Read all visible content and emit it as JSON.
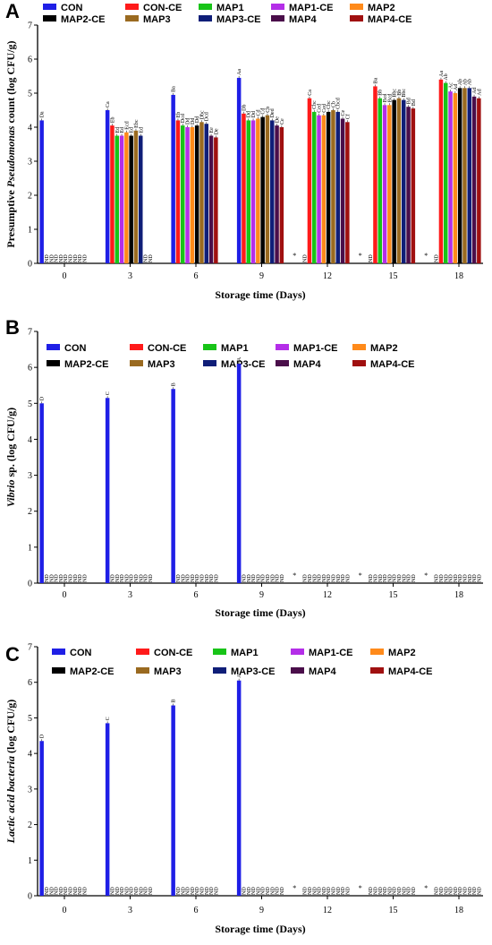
{
  "legend": [
    "CON",
    "CON-CE",
    "MAP1",
    "MAP1-CE",
    "MAP2",
    "MAP2-CE",
    "MAP3",
    "MAP3-CE",
    "MAP4",
    "MAP4-CE"
  ],
  "colors": [
    "#1f1fe6",
    "#ff1a1a",
    "#18c418",
    "#b42ee8",
    "#ff8a1a",
    "#000000",
    "#9a6a20",
    "#0f1e78",
    "#4a0e4a",
    "#a01010"
  ],
  "chart_data": [
    {
      "type": "bar",
      "panel": "A",
      "title": "",
      "xlabel": "Storage time (Days)",
      "ylabel_parts": [
        "Presumptive ",
        "Pseudomonas",
        " count (log CFU/g)"
      ],
      "ylim": [
        0,
        7
      ],
      "yticks": [
        "0",
        "1",
        "2",
        "3",
        "4",
        "5",
        "6",
        "7"
      ],
      "categories": [
        "0",
        "3",
        "6",
        "9",
        "12",
        "15",
        "18"
      ],
      "nd_label": "ND",
      "star_label": "*",
      "series": [
        {
          "name": "CON",
          "values": [
            4.2,
            4.5,
            4.95,
            5.45,
            null,
            null,
            null
          ],
          "labels": [
            "Da",
            "Ca",
            "Ba",
            "Aa",
            "",
            "",
            ""
          ]
        },
        {
          "name": "CON-CE",
          "values": [
            null,
            4.05,
            4.2,
            4.4,
            4.85,
            5.2,
            5.4
          ],
          "labels": [
            "",
            "Eb",
            "Eb",
            "Db",
            "Ca",
            "Ba",
            "Aa"
          ]
        },
        {
          "name": "MAP1",
          "values": [
            null,
            3.75,
            4.05,
            4.2,
            4.45,
            4.85,
            5.3
          ],
          "labels": [
            "",
            "Ed",
            "Dcd",
            "Dd",
            "Cbc",
            "Bb",
            "Ab"
          ]
        },
        {
          "name": "MAP1-CE",
          "values": [
            null,
            3.75,
            4.0,
            4.2,
            4.35,
            4.65,
            5.05
          ],
          "labels": [
            "",
            "Ed",
            "Dd",
            "Dd",
            "Ced",
            "Bcd",
            "Ac"
          ]
        },
        {
          "name": "MAP2",
          "values": [
            null,
            3.85,
            4.0,
            4.25,
            4.35,
            4.65,
            5.0
          ],
          "labels": [
            "",
            "Ecd",
            "Dd",
            "Cd",
            "Ced",
            "Bcd",
            "Ad"
          ]
        },
        {
          "name": "MAP2-CE",
          "values": [
            null,
            3.75,
            4.05,
            4.3,
            4.45,
            4.8,
            5.15
          ],
          "labels": [
            "",
            "Ed",
            "Dd",
            "Cd",
            "Cbc",
            "Bbc",
            "Ab"
          ]
        },
        {
          "name": "MAP3",
          "values": [
            null,
            3.9,
            4.15,
            4.35,
            4.5,
            4.85,
            5.15
          ],
          "labels": [
            "",
            "Ebc",
            "Dbc",
            "Cb",
            "Cb",
            "Bb",
            "Ab"
          ]
        },
        {
          "name": "MAP3-CE",
          "values": [
            null,
            3.75,
            4.1,
            4.2,
            4.45,
            4.8,
            5.15
          ],
          "labels": [
            "",
            "Ed",
            "Dcd",
            "Ded",
            "Cbcd",
            "Bbc",
            "Ab"
          ]
        },
        {
          "name": "MAP4",
          "values": [
            null,
            null,
            3.75,
            4.05,
            4.25,
            4.6,
            4.9
          ],
          "labels": [
            "",
            "",
            "Ee",
            "De",
            "Ce",
            "Bd",
            "Ad"
          ]
        },
        {
          "name": "MAP4-CE",
          "values": [
            null,
            null,
            3.7,
            4.0,
            4.15,
            4.55,
            4.85
          ],
          "labels": [
            "",
            "",
            "De",
            "Ce",
            "Cf",
            "Bd",
            "Ad"
          ]
        }
      ]
    },
    {
      "type": "bar",
      "panel": "B",
      "title": "",
      "xlabel": "Storage time (Days)",
      "ylabel_parts": [
        "",
        "Vibrio",
        " sp. (log CFU/g)"
      ],
      "ylim": [
        0,
        7
      ],
      "yticks": [
        "0",
        "1",
        "2",
        "3",
        "4",
        "5",
        "6",
        "7"
      ],
      "categories": [
        "0",
        "3",
        "6",
        "9",
        "12",
        "15",
        "18"
      ],
      "nd_label": "ND",
      "star_label": "*",
      "series": [
        {
          "name": "CON",
          "values": [
            5.0,
            5.15,
            5.4,
            6.1,
            null,
            null,
            null
          ],
          "labels": [
            "D",
            "C",
            "B",
            "A",
            "",
            "",
            ""
          ]
        }
      ]
    },
    {
      "type": "bar",
      "panel": "C",
      "title": "",
      "xlabel": "Storage time (Days)",
      "ylabel_parts": [
        "",
        "Lactic acid bacteria",
        " (log CFU/g)"
      ],
      "ylim": [
        0,
        7
      ],
      "yticks": [
        "0",
        "1",
        "2",
        "3",
        "4",
        "5",
        "6",
        "7"
      ],
      "categories": [
        "0",
        "3",
        "6",
        "9",
        "12",
        "15",
        "18"
      ],
      "nd_label": "ND",
      "star_label": "*",
      "series": [
        {
          "name": "CON",
          "values": [
            4.35,
            4.85,
            5.35,
            6.05,
            null,
            null,
            null
          ],
          "labels": [
            "D",
            "C",
            "B",
            "A",
            "",
            "",
            ""
          ]
        }
      ]
    }
  ]
}
